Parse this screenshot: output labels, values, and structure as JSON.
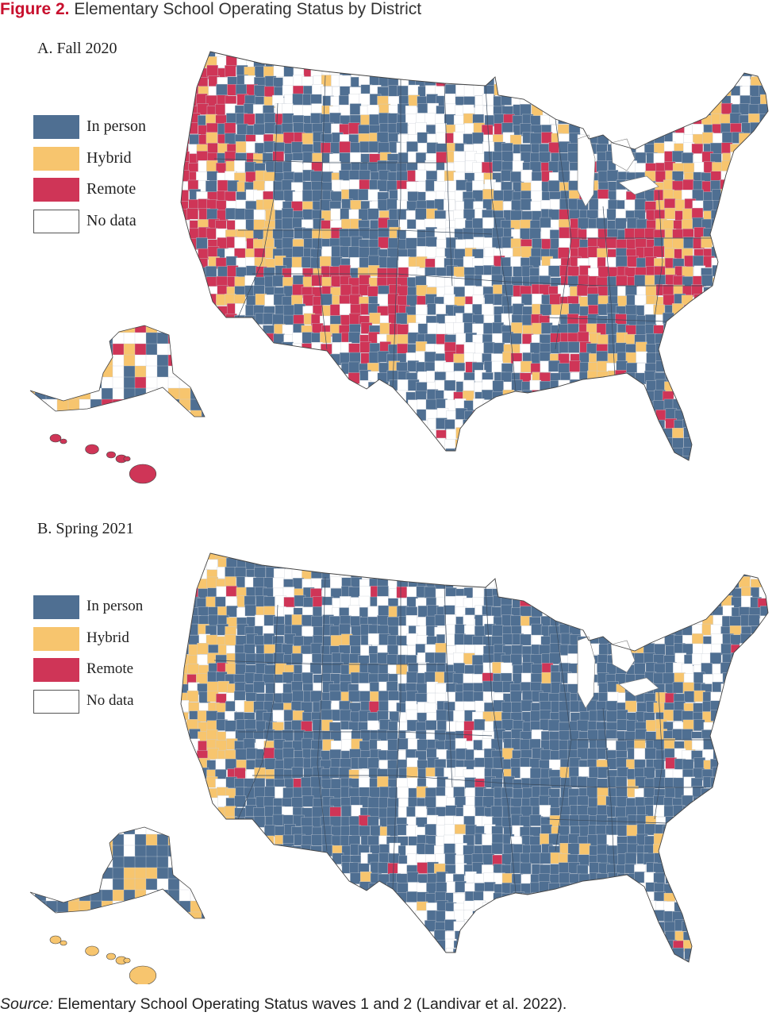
{
  "figure": {
    "label": "Figure 2.",
    "title": "Elementary School Operating Status by District"
  },
  "colors": {
    "in_person": "#4f6f92",
    "hybrid": "#f7c56e",
    "remote": "#cf3557",
    "no_data": "#ffffff",
    "accent_title": "#c8102e"
  },
  "legend": {
    "in_person": "In person",
    "hybrid": "Hybrid",
    "remote": "Remote",
    "no_data": "No data"
  },
  "panels": [
    {
      "title": "A. Fall 2020",
      "mix": {
        "in_person": 0.42,
        "hybrid": 0.14,
        "remote": 0.22,
        "no_data": 0.22
      }
    },
    {
      "title": "B. Spring 2021",
      "mix": {
        "in_person": 0.7,
        "hybrid": 0.09,
        "remote": 0.02,
        "no_data": 0.19
      }
    }
  ],
  "source": {
    "label": "Source:",
    "text": "Elementary School Operating Status waves 1 and 2 (Landivar et al. 2022)."
  }
}
